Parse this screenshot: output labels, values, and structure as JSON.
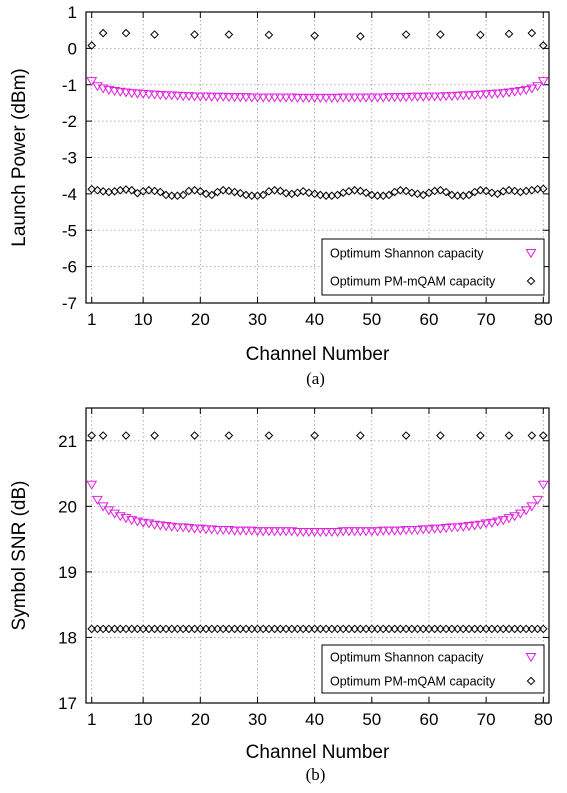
{
  "chart_data": [
    {
      "type": "scatter",
      "panel": "a",
      "caption": "(a)",
      "xlabel": "Channel Number",
      "ylabel": "Launch Power (dBm)",
      "xlim": [
        0,
        81
      ],
      "ylim": [
        -7,
        1
      ],
      "xticks": [
        "1",
        "10",
        "20",
        "30",
        "40",
        "50",
        "60",
        "70",
        "80"
      ],
      "yticks": [
        "1",
        "0",
        "-1",
        "-2",
        "-3",
        "-4",
        "-5",
        "-6",
        "-7"
      ],
      "grid": true,
      "legend_position": "bottom-right",
      "series": [
        {
          "name": "Optimum Shannon capacity",
          "marker": "triangle-down",
          "color": "#e020e0",
          "x": [
            1,
            2,
            3,
            4,
            5,
            6,
            7,
            8,
            9,
            10,
            11,
            12,
            13,
            14,
            15,
            16,
            17,
            18,
            19,
            20,
            21,
            22,
            23,
            24,
            25,
            26,
            27,
            28,
            29,
            30,
            31,
            32,
            33,
            34,
            35,
            36,
            37,
            38,
            39,
            40,
            41,
            42,
            43,
            44,
            45,
            46,
            47,
            48,
            49,
            50,
            51,
            52,
            53,
            54,
            55,
            56,
            57,
            58,
            59,
            60,
            61,
            62,
            63,
            64,
            65,
            66,
            67,
            68,
            69,
            70,
            71,
            72,
            73,
            74,
            75,
            76,
            77,
            78,
            79,
            80
          ],
          "y": [
            -0.9,
            -1.04,
            -1.1,
            -1.14,
            -1.17,
            -1.19,
            -1.21,
            -1.23,
            -1.24,
            -1.25,
            -1.26,
            -1.27,
            -1.28,
            -1.29,
            -1.29,
            -1.3,
            -1.31,
            -1.31,
            -1.32,
            -1.32,
            -1.32,
            -1.33,
            -1.33,
            -1.33,
            -1.34,
            -1.34,
            -1.34,
            -1.34,
            -1.35,
            -1.35,
            -1.35,
            -1.35,
            -1.35,
            -1.35,
            -1.35,
            -1.35,
            -1.36,
            -1.36,
            -1.36,
            -1.36,
            -1.36,
            -1.36,
            -1.36,
            -1.36,
            -1.35,
            -1.35,
            -1.35,
            -1.35,
            -1.35,
            -1.35,
            -1.35,
            -1.35,
            -1.34,
            -1.34,
            -1.34,
            -1.34,
            -1.33,
            -1.33,
            -1.33,
            -1.32,
            -1.32,
            -1.32,
            -1.31,
            -1.31,
            -1.3,
            -1.29,
            -1.29,
            -1.28,
            -1.27,
            -1.26,
            -1.25,
            -1.24,
            -1.23,
            -1.21,
            -1.19,
            -1.17,
            -1.14,
            -1.1,
            -1.04,
            -0.9
          ]
        },
        {
          "name": "Optimum PM-mQAM capacity",
          "marker": "diamond",
          "color": "#000000",
          "x": [
            1,
            2,
            3,
            4,
            5,
            6,
            7,
            8,
            9,
            10,
            11,
            12,
            13,
            14,
            15,
            16,
            17,
            18,
            19,
            20,
            21,
            22,
            23,
            24,
            25,
            26,
            27,
            28,
            29,
            30,
            31,
            32,
            33,
            34,
            35,
            36,
            37,
            38,
            39,
            40,
            41,
            42,
            43,
            44,
            45,
            46,
            47,
            48,
            49,
            50,
            51,
            52,
            53,
            54,
            55,
            56,
            57,
            58,
            59,
            60,
            61,
            62,
            63,
            64,
            65,
            66,
            67,
            68,
            69,
            70,
            71,
            72,
            73,
            74,
            75,
            76,
            77,
            78,
            79,
            80,
            1,
            3,
            7,
            12,
            19,
            25,
            32,
            40,
            48,
            56,
            62,
            69,
            74,
            78,
            80
          ],
          "y": [
            -3.87,
            -3.9,
            -3.93,
            -3.95,
            -3.93,
            -3.9,
            -3.88,
            -3.9,
            -3.98,
            -3.93,
            -3.9,
            -3.92,
            -3.95,
            -4.03,
            -4.05,
            -4.05,
            -4.03,
            -3.92,
            -3.9,
            -3.93,
            -4.0,
            -4.03,
            -3.95,
            -3.9,
            -3.92,
            -3.95,
            -3.98,
            -4.03,
            -4.05,
            -4.05,
            -4.03,
            -3.93,
            -3.9,
            -3.92,
            -3.98,
            -4.0,
            -3.97,
            -3.93,
            -3.97,
            -4.0,
            -4.03,
            -4.05,
            -4.05,
            -4.03,
            -3.97,
            -3.93,
            -3.9,
            -3.92,
            -3.97,
            -4.03,
            -4.05,
            -4.05,
            -4.03,
            -3.95,
            -3.9,
            -3.92,
            -3.97,
            -4.0,
            -4.03,
            -3.97,
            -3.92,
            -3.9,
            -3.95,
            -4.03,
            -4.05,
            -4.05,
            -4.03,
            -3.95,
            -3.9,
            -3.92,
            -3.97,
            -4.0,
            -3.93,
            -3.9,
            -3.92,
            -3.95,
            -3.92,
            -3.9,
            -3.87,
            -3.86,
            0.08,
            0.42,
            0.42,
            0.38,
            0.38,
            0.38,
            0.37,
            0.35,
            0.33,
            0.38,
            0.38,
            0.37,
            0.4,
            0.42,
            0.08
          ]
        }
      ]
    },
    {
      "type": "scatter",
      "panel": "b",
      "caption": "(b)",
      "xlabel": "Channel Number",
      "ylabel": "Symbol SNR (dB)",
      "xlim": [
        0,
        81
      ],
      "ylim": [
        17,
        21.5
      ],
      "xticks": [
        "1",
        "10",
        "20",
        "30",
        "40",
        "50",
        "60",
        "70",
        "80"
      ],
      "yticks": [
        "21",
        "20",
        "19",
        "18",
        "17"
      ],
      "grid": true,
      "legend_position": "bottom-right",
      "series": [
        {
          "name": "Optimum Shannon capacity",
          "marker": "triangle-down",
          "color": "#e020e0",
          "x": [
            1,
            2,
            3,
            4,
            5,
            6,
            7,
            8,
            9,
            10,
            11,
            12,
            13,
            14,
            15,
            16,
            17,
            18,
            19,
            20,
            21,
            22,
            23,
            24,
            25,
            26,
            27,
            28,
            29,
            30,
            31,
            32,
            33,
            34,
            35,
            36,
            37,
            38,
            39,
            40,
            41,
            42,
            43,
            44,
            45,
            46,
            47,
            48,
            49,
            50,
            51,
            52,
            53,
            54,
            55,
            56,
            57,
            58,
            59,
            60,
            61,
            62,
            63,
            64,
            65,
            66,
            67,
            68,
            69,
            70,
            71,
            72,
            73,
            74,
            75,
            76,
            77,
            78,
            79,
            80
          ],
          "y": [
            20.33,
            20.1,
            20.0,
            19.94,
            19.89,
            19.85,
            19.82,
            19.79,
            19.77,
            19.75,
            19.74,
            19.72,
            19.71,
            19.7,
            19.69,
            19.68,
            19.68,
            19.67,
            19.66,
            19.66,
            19.65,
            19.65,
            19.64,
            19.64,
            19.64,
            19.63,
            19.63,
            19.63,
            19.63,
            19.62,
            19.62,
            19.62,
            19.62,
            19.62,
            19.62,
            19.62,
            19.61,
            19.61,
            19.61,
            19.61,
            19.61,
            19.61,
            19.61,
            19.61,
            19.62,
            19.62,
            19.62,
            19.62,
            19.62,
            19.62,
            19.62,
            19.63,
            19.63,
            19.63,
            19.63,
            19.64,
            19.64,
            19.64,
            19.65,
            19.65,
            19.66,
            19.66,
            19.67,
            19.68,
            19.68,
            19.69,
            19.7,
            19.71,
            19.72,
            19.74,
            19.75,
            19.77,
            19.79,
            19.82,
            19.85,
            19.89,
            19.94,
            20.0,
            20.1,
            20.33
          ]
        },
        {
          "name": "Optimum PM-mQAM capacity",
          "marker": "diamond",
          "color": "#000000",
          "x": [
            1,
            2,
            3,
            4,
            5,
            6,
            7,
            8,
            9,
            10,
            11,
            12,
            13,
            14,
            15,
            16,
            17,
            18,
            19,
            20,
            21,
            22,
            23,
            24,
            25,
            26,
            27,
            28,
            29,
            30,
            31,
            32,
            33,
            34,
            35,
            36,
            37,
            38,
            39,
            40,
            41,
            42,
            43,
            44,
            45,
            46,
            47,
            48,
            49,
            50,
            51,
            52,
            53,
            54,
            55,
            56,
            57,
            58,
            59,
            60,
            61,
            62,
            63,
            64,
            65,
            66,
            67,
            68,
            69,
            70,
            71,
            72,
            73,
            74,
            75,
            76,
            77,
            78,
            79,
            80,
            1,
            3,
            7,
            12,
            19,
            25,
            32,
            40,
            48,
            56,
            62,
            69,
            74,
            78,
            80
          ],
          "y": [
            18.13,
            18.13,
            18.13,
            18.13,
            18.13,
            18.13,
            18.13,
            18.13,
            18.13,
            18.13,
            18.13,
            18.13,
            18.13,
            18.13,
            18.13,
            18.13,
            18.13,
            18.13,
            18.13,
            18.13,
            18.13,
            18.13,
            18.13,
            18.13,
            18.13,
            18.13,
            18.13,
            18.13,
            18.13,
            18.13,
            18.13,
            18.13,
            18.13,
            18.13,
            18.13,
            18.13,
            18.13,
            18.13,
            18.13,
            18.13,
            18.13,
            18.13,
            18.13,
            18.13,
            18.13,
            18.13,
            18.13,
            18.13,
            18.13,
            18.13,
            18.13,
            18.13,
            18.13,
            18.13,
            18.13,
            18.13,
            18.13,
            18.13,
            18.13,
            18.13,
            18.13,
            18.13,
            18.13,
            18.13,
            18.13,
            18.13,
            18.13,
            18.13,
            18.13,
            18.13,
            18.13,
            18.13,
            18.13,
            18.13,
            18.13,
            18.13,
            18.13,
            18.13,
            18.13,
            18.13,
            21.08,
            21.08,
            21.08,
            21.08,
            21.08,
            21.08,
            21.08,
            21.08,
            21.08,
            21.08,
            21.08,
            21.08,
            21.08,
            21.08,
            21.08
          ]
        }
      ]
    }
  ]
}
